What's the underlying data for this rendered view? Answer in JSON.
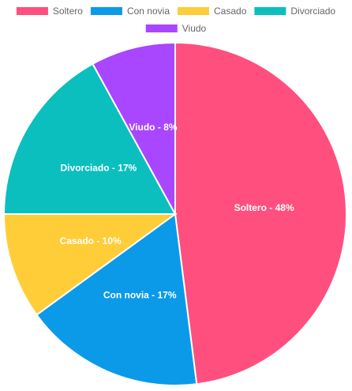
{
  "chart_data": {
    "type": "pie",
    "categories": [
      "Soltero",
      "Con novia",
      "Casado",
      "Divorciado",
      "Viudo"
    ],
    "values": [
      48,
      17,
      10,
      17,
      8
    ],
    "value_labels": [
      "Soltero - 48%",
      "Con novia - 17%",
      "Casado - 10%",
      "Divorciado - 17%",
      "Viudo - 8%"
    ],
    "colors": [
      "#ff4f7e",
      "#0b9ae8",
      "#ffcd38",
      "#0bbfbf",
      "#a946ff"
    ],
    "legend": "top"
  }
}
